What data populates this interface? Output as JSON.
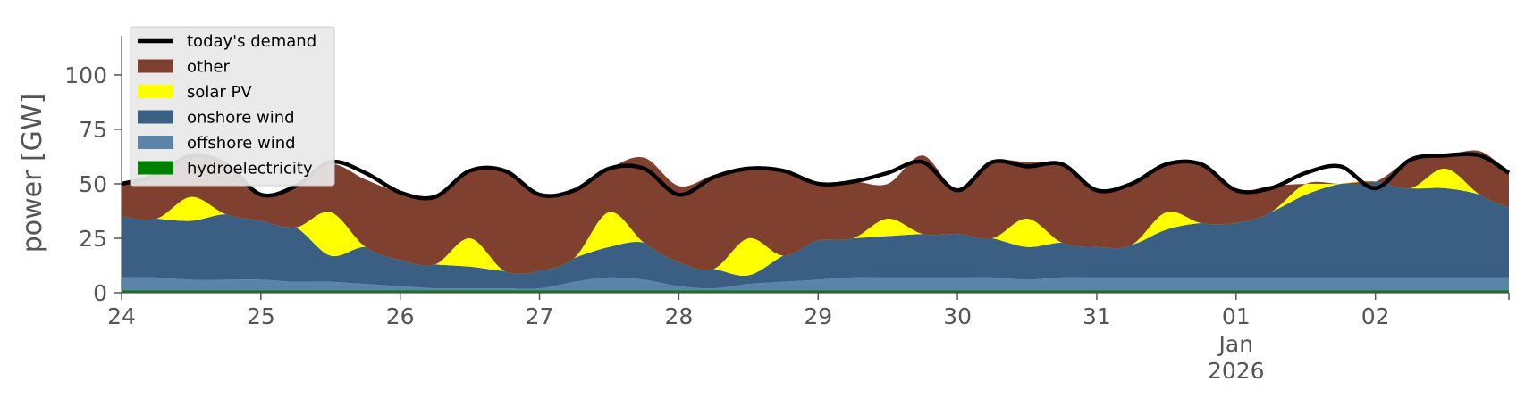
{
  "chart_data": {
    "type": "area",
    "stacked": true,
    "xlabel": "",
    "ylabel": "power [GW]",
    "ylim": [
      0,
      118
    ],
    "yticks": [
      0,
      25,
      50,
      75,
      100
    ],
    "xlim": [
      "2025-12-24T00:00",
      "2026-01-02T23:00"
    ],
    "x_ticks": [
      "2025-12-24",
      "2025-12-25",
      "2025-12-26",
      "2025-12-27",
      "2025-12-28",
      "2025-12-29",
      "2025-12-30",
      "2025-12-31",
      "2026-01-01",
      "2026-01-02"
    ],
    "x_tick_labels": [
      "24",
      "25",
      "26",
      "27",
      "28",
      "29",
      "30",
      "31",
      "01",
      "02"
    ],
    "x_sublabels": {
      "month": "Jan",
      "year": "2026"
    },
    "grid": false,
    "legend_position": "top-left",
    "x": [
      "2025-12-24T00:00",
      "2025-12-24T06:00",
      "2025-12-24T12:00",
      "2025-12-24T18:00",
      "2025-12-25T00:00",
      "2025-12-25T06:00",
      "2025-12-25T12:00",
      "2025-12-25T18:00",
      "2025-12-26T00:00",
      "2025-12-26T06:00",
      "2025-12-26T12:00",
      "2025-12-26T18:00",
      "2025-12-27T00:00",
      "2025-12-27T06:00",
      "2025-12-27T12:00",
      "2025-12-27T18:00",
      "2025-12-28T00:00",
      "2025-12-28T06:00",
      "2025-12-28T12:00",
      "2025-12-28T18:00",
      "2025-12-29T00:00",
      "2025-12-29T06:00",
      "2025-12-29T12:00",
      "2025-12-29T18:00",
      "2025-12-30T00:00",
      "2025-12-30T06:00",
      "2025-12-30T12:00",
      "2025-12-30T18:00",
      "2025-12-31T00:00",
      "2025-12-31T06:00",
      "2025-12-31T12:00",
      "2025-12-31T18:00",
      "2026-01-01T00:00",
      "2026-01-01T06:00",
      "2026-01-01T12:00",
      "2026-01-01T18:00",
      "2026-01-02T00:00",
      "2026-01-02T06:00",
      "2026-01-02T12:00",
      "2026-01-02T18:00",
      "2026-01-02T23:00"
    ],
    "series": [
      {
        "name": "hydroelectricity",
        "color": "#008000",
        "values": [
          1,
          1,
          1,
          1,
          1,
          1,
          1,
          1,
          1,
          1,
          1,
          1,
          1,
          1,
          1,
          1,
          1,
          1,
          1,
          1,
          1,
          1,
          1,
          1,
          1,
          1,
          1,
          1,
          1,
          1,
          1,
          1,
          1,
          1,
          1,
          1,
          1,
          1,
          1,
          1,
          1
        ]
      },
      {
        "name": "offshore wind",
        "color": "#5c83a8",
        "values": [
          6,
          6,
          5,
          5,
          5,
          4,
          4,
          3,
          2,
          1,
          1,
          1,
          1,
          4,
          6,
          5,
          2,
          1,
          3,
          4,
          5,
          6,
          6,
          6,
          6,
          6,
          5,
          6,
          6,
          6,
          6,
          6,
          6,
          6,
          6,
          6,
          6,
          6,
          6,
          6,
          6
        ]
      },
      {
        "name": "onshore wind",
        "color": "#3a5f82",
        "values": [
          28,
          27,
          27,
          30,
          27,
          25,
          12,
          17,
          12,
          11,
          10,
          8,
          8,
          11,
          14,
          17,
          11,
          9,
          4,
          12,
          18,
          18,
          19,
          20,
          20,
          18,
          15,
          16,
          14,
          15,
          22,
          25,
          25,
          30,
          38,
          43,
          44,
          41,
          41,
          38,
          32
        ]
      },
      {
        "name": "solar PV",
        "color": "#ffff00",
        "values": [
          0,
          0,
          11,
          0,
          0,
          0,
          20,
          0,
          0,
          0,
          13,
          0,
          0,
          0,
          16,
          0,
          0,
          0,
          17,
          0,
          0,
          0,
          8,
          0,
          0,
          0,
          13,
          0,
          0,
          0,
          8,
          0,
          0,
          0,
          5,
          0,
          0,
          0,
          9,
          0,
          0
        ]
      },
      {
        "name": "other",
        "color": "#804030",
        "values": [
          15,
          20,
          19,
          23,
          12,
          19,
          22,
          31,
          31,
          31,
          31,
          46,
          35,
          31,
          20,
          39,
          35,
          43,
          32,
          39,
          25,
          26,
          16,
          36,
          20,
          35,
          26,
          36,
          26,
          28,
          22,
          27,
          15,
          12,
          0,
          0,
          0,
          13,
          6,
          20,
          16
        ]
      }
    ],
    "demand": {
      "name": "today's demand",
      "color": "#000000",
      "values": [
        50,
        54,
        63,
        59,
        45,
        49,
        60,
        55,
        46,
        44,
        56,
        56,
        45,
        47,
        57,
        57,
        45,
        53,
        57,
        56,
        50,
        51,
        55,
        60,
        47,
        60,
        58,
        59,
        47,
        50,
        59,
        59,
        47,
        48,
        55,
        58,
        48,
        61,
        63,
        63,
        55
      ]
    }
  },
  "legend": {
    "items": [
      {
        "label": "today's demand",
        "kind": "line",
        "color": "#000000"
      },
      {
        "label": "other",
        "kind": "patch",
        "color": "#804030"
      },
      {
        "label": "solar PV",
        "kind": "patch",
        "color": "#ffff00"
      },
      {
        "label": "onshore wind",
        "kind": "patch",
        "color": "#3a5f82"
      },
      {
        "label": "offshore wind",
        "kind": "patch",
        "color": "#5c83a8"
      },
      {
        "label": "hydroelectricity",
        "kind": "patch",
        "color": "#008000"
      }
    ]
  }
}
